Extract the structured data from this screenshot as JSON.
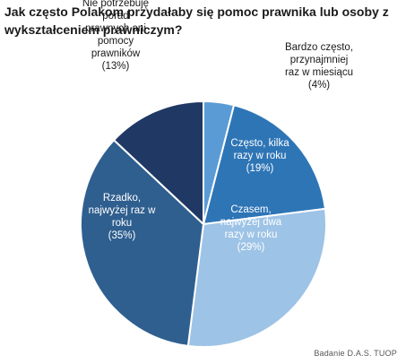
{
  "title": "Jak często Polakom przydałaby się pomoc prawnika lub osoby z wykształceniem prawniczym?",
  "source": "Badanie D.A.S. TUOP",
  "colors": {
    "bardzo_czesto": "#5b9bd5",
    "czesto": "#2e75b6",
    "czasem": "#9dc3e6",
    "rzadko": "#2f5f8f",
    "nie_potrzebuje": "#203864",
    "label_light": "#ffffff",
    "label_dark": "#1a1a1a"
  },
  "chart_data": {
    "type": "pie",
    "slices": [
      {
        "label": "Bardzo często, przynajmniej raz w miesiącu",
        "lines": [
          "Bardzo często,",
          "przynajmniej",
          "raz w miesiącu"
        ],
        "value": 4,
        "pct_text": "(4%)"
      },
      {
        "label": "Często, kilka razy w roku",
        "lines": [
          "Często, kilka",
          "razy w roku"
        ],
        "value": 19,
        "pct_text": "(19%)"
      },
      {
        "label": "Czasem, najwyżej dwa razy w roku",
        "lines": [
          "Czasem,",
          "najwyżej dwa",
          "razy w roku"
        ],
        "value": 29,
        "pct_text": "(29%)"
      },
      {
        "label": "Rzadko, najwyżej raz w roku",
        "lines": [
          "Rzadko,",
          "najwyżej raz w",
          "roku"
        ],
        "value": 35,
        "pct_text": "(35%)"
      },
      {
        "label": "Nie potrzebuję porad prawnych ani pomocy prawników",
        "lines": [
          "Nie potrzebuję",
          "porad",
          "prawnych ani",
          "pomocy",
          "prawników"
        ],
        "value": 13,
        "pct_text": "(13%)"
      }
    ]
  }
}
